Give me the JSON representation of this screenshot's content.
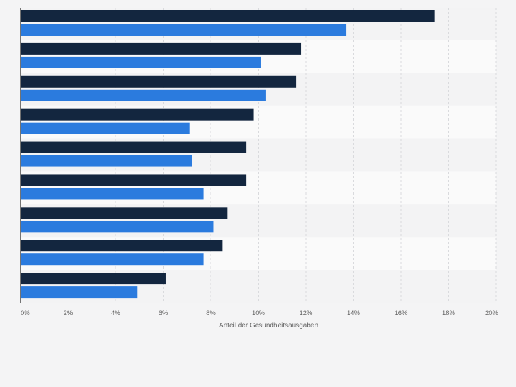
{
  "chart_data": {
    "type": "bar",
    "orientation": "horizontal",
    "categories": [
      "",
      "",
      "",
      "",
      "",
      "",
      "",
      "",
      ""
    ],
    "series": [
      {
        "values": [
          17.4,
          11.8,
          11.6,
          9.8,
          9.5,
          9.5,
          8.7,
          8.5,
          6.1
        ],
        "color": "#13263f"
      },
      {
        "values": [
          13.7,
          10.1,
          10.3,
          7.1,
          7.2,
          7.7,
          8.1,
          7.7,
          4.9
        ],
        "color": "#2b7bde"
      }
    ],
    "xlabel": "Anteil der Gesundheitsausgaben",
    "ylabel": "",
    "xlim": [
      0,
      20
    ],
    "x_ticks": [
      "0%",
      "2%",
      "4%",
      "6%",
      "8%",
      "10%",
      "12%",
      "14%",
      "16%",
      "18%",
      "20%"
    ],
    "grid": true,
    "colors": {
      "background": "#f4f4f5",
      "band_light": "#fafafa",
      "band_dark": "#f3f3f4",
      "grid": "#d9dadd",
      "axis": "#4a4a4a",
      "tick_text": "#666666"
    }
  }
}
